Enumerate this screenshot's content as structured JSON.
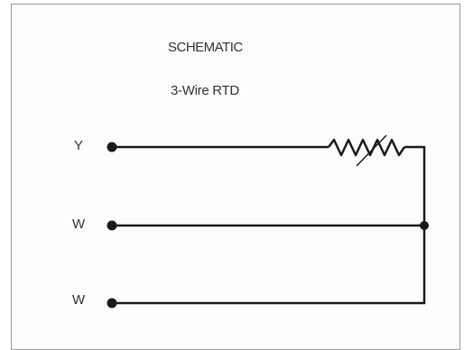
{
  "diagram": {
    "title": "SCHEMATIC",
    "subtitle": "3-Wire RTD",
    "terminals": [
      {
        "label": "Y"
      },
      {
        "label": "W"
      },
      {
        "label": "W"
      }
    ],
    "colors": {
      "wire": "#1a1a1a",
      "text": "#333333",
      "border": "#9a9a9a"
    },
    "components": {
      "rtd": "variable-resistor-icon"
    }
  }
}
